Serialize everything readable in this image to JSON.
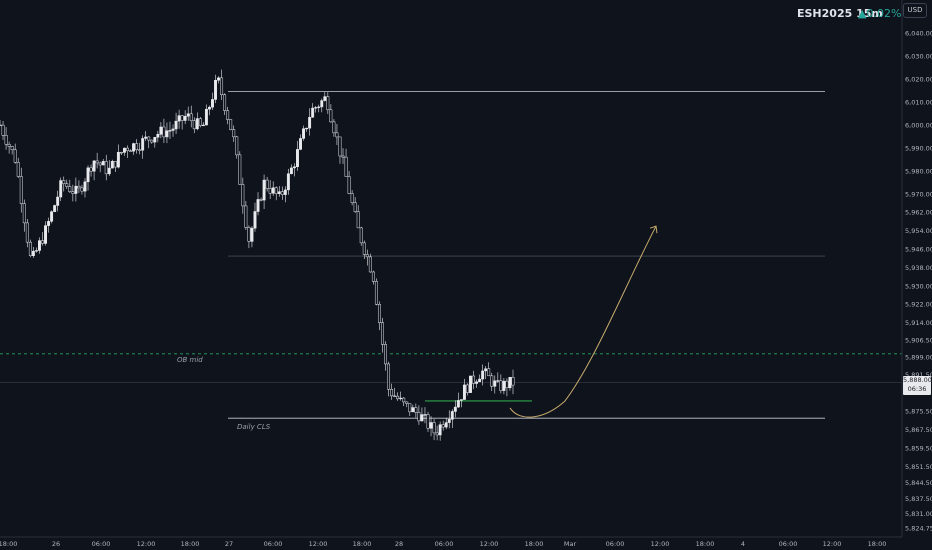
{
  "header": {
    "symbol": "ESH2025 15m",
    "change": "▲0.02%",
    "currency_label": "USD"
  },
  "price_tag": {
    "price": "5,888.00",
    "countdown": "06:36"
  },
  "annotations": {
    "ob_mid": "OB mid",
    "daily_cls": "Daily CLS"
  },
  "colors": {
    "background": "#0e131c",
    "candles": "#e8eaee",
    "levels": "#c8ccd4",
    "ob_mid_line": "#26a65b",
    "support_line": "#2fa34a",
    "projection_arrow": "#c9ab6c"
  },
  "chart_data": {
    "type": "candlestick",
    "symbol": "ESH2025",
    "timeframe": "15m",
    "y_axis": {
      "ticks": [
        6040,
        6030,
        6020,
        6010,
        6000,
        5990,
        5980,
        5970,
        5962,
        5954,
        5946,
        5938,
        5930,
        5922,
        5914,
        5906.5,
        5899,
        5891.5,
        5875.5,
        5867.5,
        5859.5,
        5851.5,
        5844.5,
        5837.5,
        5831,
        5824.75
      ],
      "tick_labels": [
        "6,040.00",
        "6,030.00",
        "6,020.00",
        "6,010.00",
        "6,000.00",
        "5,990.00",
        "5,980.00",
        "5,970.00",
        "5,962.00",
        "5,954.00",
        "5,946.00",
        "5,938.00",
        "5,930.00",
        "5,922.00",
        "5,914.00",
        "5,906.50",
        "5,899.00",
        "5,891.50",
        "5,875.50",
        "5,867.50",
        "5,859.50",
        "5,851.50",
        "5,844.50",
        "5,837.50",
        "5,831.00",
        "5,824.75"
      ]
    },
    "x_axis": {
      "tick_labels": [
        "18:00",
        "26",
        "06:00",
        "12:00",
        "18:00",
        "27",
        "06:00",
        "12:00",
        "18:00",
        "28",
        "06:00",
        "12:00",
        "18:00",
        "Mar",
        "06:00",
        "12:00",
        "18:00",
        "4",
        "06:00",
        "12:00",
        "18:00"
      ]
    },
    "price_path": [
      [
        0,
        6000
      ],
      [
        1,
        5985
      ],
      [
        2,
        5940
      ],
      [
        3,
        5955
      ],
      [
        4,
        5975
      ],
      [
        5,
        5970
      ],
      [
        6,
        5985
      ],
      [
        7,
        5980
      ],
      [
        8,
        5990
      ],
      [
        9,
        5992
      ],
      [
        10,
        5996
      ],
      [
        11,
        5998
      ],
      [
        12,
        6004
      ],
      [
        13,
        5998
      ],
      [
        14,
        6020
      ],
      [
        15,
        5995
      ],
      [
        16,
        5950
      ],
      [
        17,
        5975
      ],
      [
        18,
        5968
      ],
      [
        19,
        5985
      ],
      [
        20,
        6006
      ],
      [
        21,
        6012
      ],
      [
        22,
        5985
      ],
      [
        23,
        5955
      ],
      [
        24,
        5935
      ],
      [
        25,
        5885
      ],
      [
        26,
        5878
      ],
      [
        27,
        5874
      ],
      [
        28,
        5866
      ],
      [
        29,
        5876
      ],
      [
        30,
        5886
      ],
      [
        31,
        5893
      ],
      [
        32,
        5886
      ],
      [
        33,
        5888
      ]
    ],
    "horizontal_levels": [
      {
        "price": 6014.5,
        "style": "solid",
        "label": ""
      },
      {
        "price": 5943,
        "style": "solid",
        "label": ""
      },
      {
        "price": 5900.5,
        "style": "dashed",
        "label": "OB mid"
      },
      {
        "price": 5888,
        "style": "solid",
        "label": ""
      },
      {
        "price": 5880,
        "style": "solid",
        "label": ""
      },
      {
        "price": 5872.5,
        "style": "solid",
        "label": "Daily CLS"
      }
    ],
    "projection": {
      "from_price": 5880,
      "to_price": 5956
    }
  }
}
